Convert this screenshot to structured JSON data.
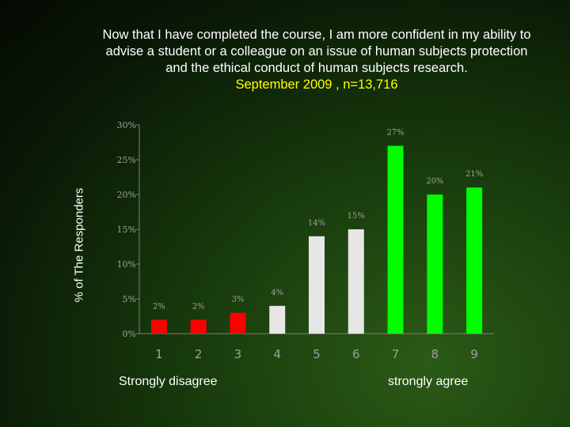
{
  "chart_data": {
    "type": "bar",
    "title": "Now that I have completed the course, I am more confident in my ability to advise a student or a colleague on an issue of human subjects protection and the ethical conduct of human subjects research.",
    "subtitle": "September 2009 , n=13,716",
    "ylabel": "% of The Responders",
    "xlabel": "",
    "categories": [
      "1",
      "2",
      "3",
      "4",
      "5",
      "6",
      "7",
      "8",
      "9"
    ],
    "values": [
      2,
      2,
      3,
      4,
      14,
      15,
      27,
      20,
      21
    ],
    "data_labels": [
      "2%",
      "2%",
      "3%",
      "4%",
      "14%",
      "15%",
      "27%",
      "20%",
      "21%"
    ],
    "bar_colors": [
      "#ff0000",
      "#ff0000",
      "#ff0000",
      "#e6e6e6",
      "#e6e6e6",
      "#e6e6e6",
      "#00ff00",
      "#00ff00",
      "#00ff00"
    ],
    "ylim": [
      0,
      30
    ],
    "yticks": [
      "0%",
      "5%",
      "10%",
      "15%",
      "20%",
      "25%",
      "30%"
    ],
    "grid": false,
    "scale_labels": {
      "low": "Strongly disagree",
      "high": "strongly agree"
    }
  },
  "colors": {
    "title": "#ffffff",
    "subtitle": "#ffff00",
    "tick_text": "#a0a0a0",
    "axis_line": "#808080"
  }
}
